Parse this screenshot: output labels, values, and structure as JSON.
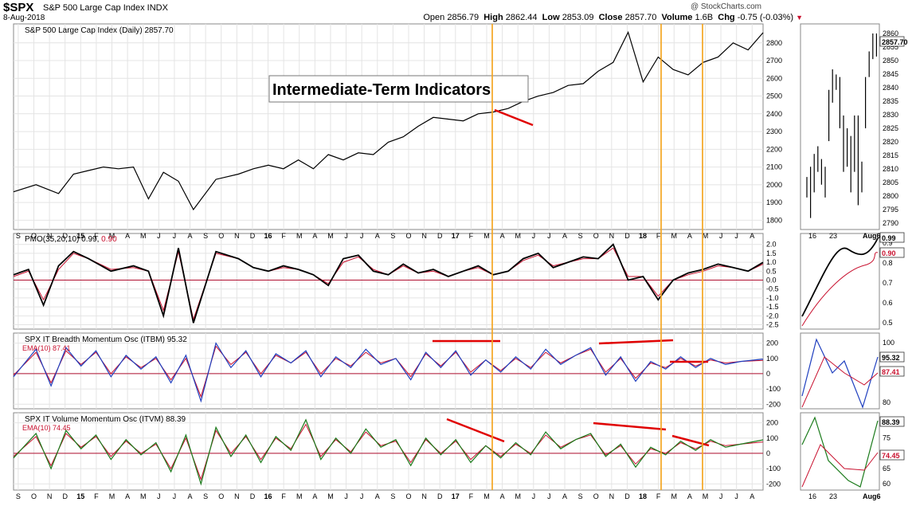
{
  "header": {
    "symbol": "$SPX",
    "name": "S&P 500 Large Cap Index INDX",
    "date": "8-Aug-2018",
    "credit": "@ StockCharts.com",
    "open_label": "Open",
    "open": "2856.79",
    "high_label": "High",
    "high": "2862.44",
    "low_label": "Low",
    "low": "2853.09",
    "close_label": "Close",
    "close": "2857.70",
    "volume_label": "Volume",
    "volume": "1.6B",
    "chg_label": "Chg",
    "chg": "-0.75 (-0.03%)"
  },
  "annotation": "Intermediate-Term Indicators",
  "chart_data": [
    {
      "id": "price",
      "type": "line",
      "legend": "S&P 500 Large Cap Index (Daily) 2857.70",
      "ylim": [
        1770,
        2880
      ],
      "yticks": [
        1800,
        1900,
        2000,
        2100,
        2200,
        2300,
        2400,
        2500,
        2600,
        2700,
        2800
      ],
      "x": [
        0,
        3,
        6,
        8,
        10,
        12,
        14,
        16,
        18,
        20,
        22,
        24,
        27,
        30,
        32,
        34,
        36,
        38,
        40,
        42,
        44
      ],
      "values": [
        1960,
        2000,
        1950,
        2060,
        2080,
        2100,
        2090,
        2100,
        1920,
        2070,
        2020,
        1860,
        2030,
        2060,
        2090,
        2110,
        2090,
        2140,
        2090,
        2170,
        2140
      ],
      "x2": [
        46,
        48,
        50,
        52,
        54,
        56,
        58,
        60,
        62,
        64,
        66,
        68,
        70,
        72,
        74,
        76,
        78,
        80,
        82,
        84,
        86,
        88,
        90,
        92,
        94,
        96,
        98,
        100
      ],
      "values2": [
        2180,
        2170,
        2240,
        2270,
        2330,
        2380,
        2370,
        2360,
        2400,
        2410,
        2430,
        2470,
        2500,
        2520,
        2560,
        2570,
        2640,
        2690,
        2860,
        2580,
        2720,
        2650,
        2620,
        2690,
        2720,
        2800,
        2760,
        2857.7
      ]
    },
    {
      "id": "pmo",
      "type": "line",
      "legend": "PMO(35,20,10)",
      "legend_value": "0.99",
      "legend_signal": "0.90",
      "ylim": [
        -2.7,
        2.3
      ],
      "yticks": [
        "2.0",
        "1.5",
        "1.0",
        "0.5",
        "0.0",
        "-0.5",
        "-1.0",
        "-1.5",
        "-2.0",
        "-2.5"
      ],
      "x": [
        0,
        2,
        4,
        6,
        8,
        10,
        13,
        16,
        18,
        20,
        22,
        24,
        27,
        30,
        32,
        34,
        36,
        38,
        40,
        42,
        44,
        46,
        48,
        50,
        52,
        54,
        56,
        58,
        60,
        62,
        64,
        66,
        68,
        70,
        72,
        74,
        76,
        78,
        80,
        82,
        84,
        86,
        88,
        90,
        92,
        94,
        96,
        98,
        100
      ],
      "pmo": [
        0.3,
        0.6,
        -1.4,
        0.8,
        1.6,
        1.2,
        0.5,
        0.8,
        0.5,
        -2.0,
        1.8,
        -2.4,
        1.6,
        1.2,
        0.7,
        0.5,
        0.8,
        0.6,
        0.3,
        -0.3,
        1.2,
        1.4,
        0.5,
        0.3,
        0.9,
        0.4,
        0.6,
        0.2,
        0.5,
        0.8,
        0.3,
        0.5,
        1.2,
        1.5,
        0.7,
        1.0,
        1.3,
        1.2,
        2.0,
        0.0,
        0.2,
        -1.1,
        0.0,
        0.4,
        0.6,
        0.9,
        0.7,
        0.5,
        0.99
      ],
      "signal": [
        0.2,
        0.5,
        -1.1,
        0.6,
        1.5,
        1.2,
        0.6,
        0.7,
        0.5,
        -1.7,
        1.6,
        -2.2,
        1.5,
        1.2,
        0.7,
        0.5,
        0.7,
        0.6,
        0.3,
        -0.2,
        1.0,
        1.3,
        0.6,
        0.3,
        0.8,
        0.4,
        0.5,
        0.2,
        0.5,
        0.7,
        0.3,
        0.5,
        1.1,
        1.4,
        0.8,
        1.0,
        1.2,
        1.2,
        1.8,
        0.2,
        0.2,
        -0.9,
        0.0,
        0.3,
        0.5,
        0.8,
        0.7,
        0.5,
        0.9
      ]
    },
    {
      "id": "itbm",
      "type": "line",
      "legend": "SPX IT Breadth Momentum Osc (ITBM) 95.32",
      "ema_legend": "EMA(10) 87.41",
      "ylim": [
        -230,
        250
      ],
      "yticks": [
        "200",
        "100",
        "0",
        "-100",
        "-200"
      ],
      "x": [
        0,
        3,
        5,
        7,
        9,
        11,
        13,
        15,
        17,
        19,
        21,
        23,
        25,
        27,
        29,
        31,
        33,
        35,
        37,
        39,
        41,
        43,
        45,
        47,
        49,
        51,
        53,
        55,
        57,
        59,
        61,
        63,
        65,
        67,
        69,
        71,
        73,
        75,
        77,
        79,
        81,
        83,
        85,
        87,
        89,
        91,
        93,
        95,
        97,
        100
      ],
      "itbm": [
        -20,
        160,
        -80,
        170,
        50,
        150,
        -20,
        120,
        30,
        110,
        -60,
        120,
        -180,
        200,
        40,
        150,
        -20,
        130,
        70,
        150,
        -20,
        110,
        40,
        160,
        60,
        100,
        -40,
        140,
        40,
        150,
        -10,
        90,
        10,
        110,
        30,
        160,
        60,
        120,
        170,
        -10,
        110,
        -50,
        80,
        30,
        110,
        40,
        100,
        60,
        80,
        95.32
      ],
      "ema": [
        -10,
        140,
        -60,
        150,
        60,
        140,
        0,
        110,
        40,
        100,
        -40,
        100,
        -150,
        180,
        60,
        140,
        0,
        120,
        70,
        140,
        0,
        100,
        50,
        140,
        70,
        100,
        -20,
        130,
        50,
        140,
        10,
        90,
        20,
        100,
        40,
        140,
        70,
        120,
        160,
        10,
        100,
        -30,
        70,
        40,
        100,
        50,
        90,
        70,
        80,
        87.41
      ]
    },
    {
      "id": "itvm",
      "type": "line",
      "legend": "SPX IT Volume Momentum Osc (ITVM) 88.39",
      "ema_legend": "EMA(10) 74.45",
      "ylim": [
        -230,
        250
      ],
      "yticks": [
        "200",
        "100",
        "0",
        "-100",
        "-200"
      ],
      "x": [
        0,
        3,
        5,
        7,
        9,
        11,
        13,
        15,
        17,
        19,
        21,
        23,
        25,
        27,
        29,
        31,
        33,
        35,
        37,
        39,
        41,
        43,
        45,
        47,
        49,
        51,
        53,
        55,
        57,
        59,
        61,
        63,
        65,
        67,
        69,
        71,
        73,
        75,
        77,
        79,
        81,
        83,
        85,
        87,
        89,
        91,
        93,
        95,
        97,
        100
      ],
      "itvm": [
        -30,
        130,
        -100,
        150,
        30,
        120,
        -40,
        90,
        -10,
        70,
        -120,
        120,
        -200,
        170,
        -20,
        120,
        -60,
        110,
        20,
        220,
        -40,
        100,
        0,
        160,
        40,
        90,
        -80,
        100,
        -10,
        90,
        -60,
        50,
        -30,
        70,
        -10,
        140,
        30,
        90,
        130,
        -20,
        60,
        -90,
        40,
        -10,
        80,
        20,
        90,
        40,
        60,
        88.39
      ],
      "ema": [
        -20,
        110,
        -80,
        130,
        40,
        110,
        -20,
        80,
        0,
        60,
        -100,
        100,
        -170,
        150,
        0,
        110,
        -40,
        100,
        30,
        190,
        -20,
        90,
        10,
        140,
        50,
        80,
        -60,
        90,
        0,
        80,
        -40,
        50,
        -20,
        60,
        0,
        120,
        40,
        90,
        120,
        -10,
        50,
        -70,
        30,
        0,
        70,
        30,
        80,
        50,
        60,
        74.45
      ]
    }
  ],
  "x_axis": {
    "labels": [
      "S",
      "O",
      "N",
      "D",
      "15",
      "F",
      "M",
      "A",
      "M",
      "J",
      "J",
      "A",
      "S",
      "O",
      "N",
      "D",
      "16",
      "F",
      "M",
      "A",
      "M",
      "J",
      "J",
      "A",
      "S",
      "O",
      "N",
      "D",
      "17",
      "F",
      "M",
      "A",
      "M",
      "J",
      "J",
      "A",
      "S",
      "O",
      "N",
      "D",
      "18",
      "F",
      "M",
      "A",
      "M",
      "J",
      "J",
      "A"
    ],
    "bold": [
      "15",
      "16",
      "17",
      "18"
    ]
  },
  "side_panels": {
    "price_ticks": [
      "2860",
      "2855",
      "2850",
      "2845",
      "2840",
      "2835",
      "2830",
      "2825",
      "2820",
      "2815",
      "2810",
      "2805",
      "2800",
      "2795",
      "2790"
    ],
    "price_tag": "2857.70",
    "pmo_ticks": [
      "0.9",
      "0.8",
      "0.7",
      "0.6",
      "0.5"
    ],
    "pmo_tag": "0.99",
    "pmo_signal_tag": "0.90",
    "itbm_ticks": [
      "100",
      "90",
      "80"
    ],
    "itbm_tag": "95.32",
    "itbm_ema_tag": "87.41",
    "itvm_ticks": [
      "80",
      "75",
      "70",
      "65",
      "60"
    ],
    "itvm_tag": "88.39",
    "itvm_ema_tag": "74.45",
    "x_labels": [
      "16",
      "23",
      "Aug6"
    ]
  },
  "colors": {
    "price": "#000000",
    "signal": "#c8102e",
    "itbm": "#1f3fbf",
    "itvm": "#1a7a1a",
    "zero": "#b01030",
    "vline": "#f5a623",
    "trend": "#e00000",
    "grid": "#e4e4e4"
  }
}
